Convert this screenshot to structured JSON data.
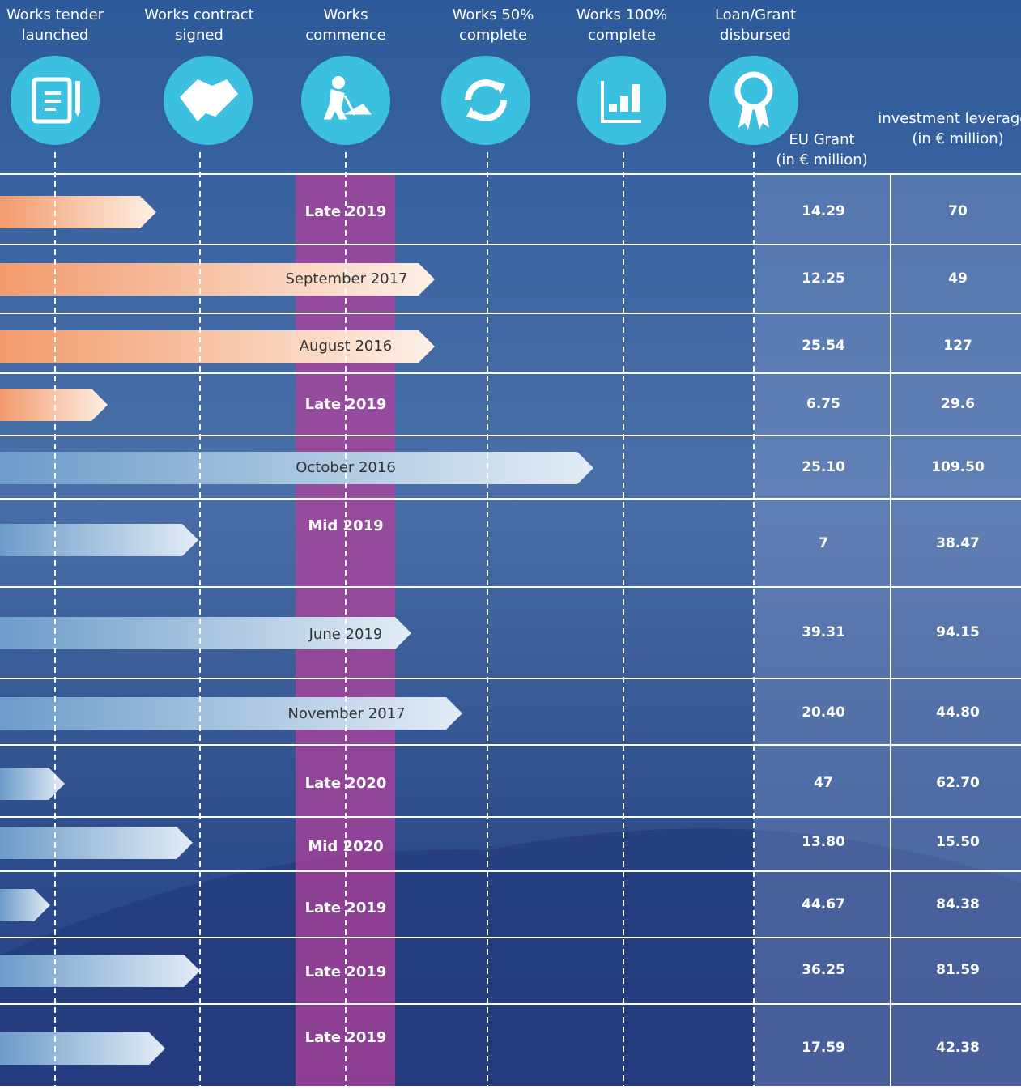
{
  "stages": [
    "Works tender launched",
    "Works contract signed",
    "Works commence",
    "Works 50% complete",
    "Works 100% complete",
    "Loan/Grant disbursed"
  ],
  "columns": {
    "grant": "EU Grant (in € million)",
    "investment": "investment leveraged (in € million)"
  },
  "rows": [
    {
      "date": "Late 2019",
      "grant": "14.29",
      "investment": "70"
    },
    {
      "date": "September 2017",
      "grant": "12.25",
      "investment": "49"
    },
    {
      "date": "August 2016",
      "grant": "25.54",
      "investment": "127"
    },
    {
      "date": "Late 2019",
      "grant": "6.75",
      "investment": "29.6"
    },
    {
      "date": "October 2016",
      "grant": "25.10",
      "investment": "109.50"
    },
    {
      "date": "Mid 2019",
      "grant": "7",
      "investment": "38.47"
    },
    {
      "date": "June 2019",
      "grant": "39.31",
      "investment": "94.15"
    },
    {
      "date": "November 2017",
      "grant": "20.40",
      "investment": "44.80"
    },
    {
      "date": "Late 2020",
      "grant": "47",
      "investment": "62.70"
    },
    {
      "date": "Mid 2020",
      "grant": "13.80",
      "investment": "15.50"
    },
    {
      "date": "Late 2019",
      "grant": "44.67",
      "investment": "84.38"
    },
    {
      "date": "Late 2019",
      "grant": "36.25",
      "investment": "81.59"
    },
    {
      "date": "Late 2019",
      "grant": "17.59",
      "investment": "42.38"
    }
  ]
}
